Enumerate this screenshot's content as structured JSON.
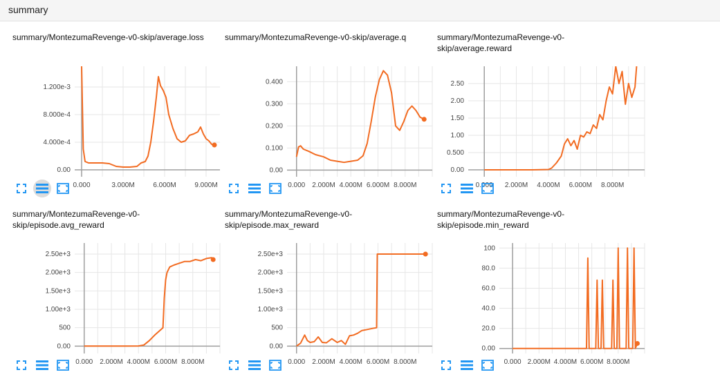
{
  "page": {
    "title": "summary"
  },
  "charts": [
    {
      "title_lines": [
        "summary/MontezumaRevenge-v0-skip/average.loss"
      ]
    },
    {
      "title_lines": [
        "summary/MontezumaRevenge-v0-skip/average.q"
      ]
    },
    {
      "title_lines": [
        "summary/MontezumaRevenge-v0-",
        "skip/average.reward"
      ]
    },
    {
      "title_lines": [
        "summary/MontezumaRevenge-v0-",
        "skip/episode.avg_reward"
      ]
    },
    {
      "title_lines": [
        "summary/MontezumaRevenge-v0-",
        "skip/episode.max_reward"
      ]
    },
    {
      "title_lines": [
        "summary/MontezumaRevenge-v0-",
        "skip/episode.min_reward"
      ]
    }
  ],
  "icons": [
    "expand-icon",
    "list-icon",
    "fit-domain-icon"
  ],
  "colors": {
    "line": "#f26b21",
    "grid": "#e6e6e6",
    "axis": "#9e9e9e",
    "icon": "#2196f3"
  },
  "chart_data": [
    {
      "type": "line",
      "title": "summary/MontezumaRevenge-v0-skip/average.loss",
      "x_ticks": [
        "0.000",
        "3.000M",
        "6.000M",
        "9.000M"
      ],
      "y_ticks": [
        "0.00",
        "4.000e-4",
        "8.000e-4",
        "1.200e-3"
      ],
      "xlim": [
        -500000,
        10000000
      ],
      "ylim": [
        -0.0001,
        0.0015
      ],
      "x_tick_values": [
        0,
        3000000,
        6000000,
        9000000
      ],
      "y_tick_values": [
        0,
        0.0004,
        0.0008,
        0.0012
      ],
      "series": [
        {
          "x": [
            0,
            120000,
            250000,
            500000,
            1000000,
            1500000,
            2000000,
            2500000,
            3000000,
            3500000,
            4000000,
            4300000,
            4600000,
            4800000,
            5000000,
            5200000,
            5400000,
            5550000,
            5700000,
            5900000,
            6100000,
            6300000,
            6600000,
            6900000,
            7200000,
            7500000,
            7800000,
            8100000,
            8400000,
            8600000,
            8800000,
            9000000,
            9200000,
            9400000,
            9600000
          ],
          "y": [
            0.0015,
            0.0003,
            0.00012,
            0.0001,
            0.0001,
            0.0001,
            9e-05,
            5e-05,
            4e-05,
            4e-05,
            5e-05,
            0.0001,
            0.00012,
            0.0002,
            0.0004,
            0.0007,
            0.00105,
            0.00135,
            0.00122,
            0.00115,
            0.00105,
            0.0008,
            0.0006,
            0.00045,
            0.0004,
            0.00042,
            0.0005,
            0.00052,
            0.00055,
            0.00062,
            0.00052,
            0.00045,
            0.00042,
            0.00037,
            0.00036
          ]
        }
      ],
      "end_marker": true
    },
    {
      "type": "line",
      "title": "summary/MontezumaRevenge-v0-skip/average.q",
      "x_ticks": [
        "0.000",
        "2.000M",
        "4.000M",
        "6.000M",
        "8.000M"
      ],
      "y_ticks": [
        "0.00",
        "0.100",
        "0.200",
        "0.300",
        "0.400"
      ],
      "xlim": [
        -700000,
        10000000
      ],
      "ylim": [
        -0.03,
        0.47
      ],
      "x_tick_values": [
        0,
        2000000,
        4000000,
        6000000,
        8000000
      ],
      "y_tick_values": [
        0,
        0.1,
        0.2,
        0.3,
        0.4
      ],
      "series": [
        {
          "x": [
            0,
            150000,
            300000,
            500000,
            900000,
            1400000,
            2000000,
            2500000,
            3000000,
            3500000,
            4000000,
            4500000,
            4900000,
            5200000,
            5500000,
            5800000,
            6100000,
            6400000,
            6700000,
            7000000,
            7300000,
            7600000,
            7900000,
            8200000,
            8500000,
            8800000,
            9100000,
            9400000
          ],
          "y": [
            0.06,
            0.105,
            0.11,
            0.095,
            0.085,
            0.07,
            0.06,
            0.045,
            0.04,
            0.035,
            0.04,
            0.045,
            0.065,
            0.12,
            0.22,
            0.33,
            0.41,
            0.45,
            0.43,
            0.35,
            0.2,
            0.18,
            0.22,
            0.27,
            0.29,
            0.27,
            0.24,
            0.23
          ]
        }
      ],
      "end_marker": true
    },
    {
      "type": "line",
      "title": "summary/MontezumaRevenge-v0-skip/average.reward",
      "x_ticks": [
        "0.000",
        "2.000M",
        "4.000M",
        "6.000M",
        "8.000M"
      ],
      "y_ticks": [
        "0.00",
        "0.500",
        "1.00",
        "1.50",
        "2.00",
        "2.50"
      ],
      "xlim": [
        -1000000,
        10000000
      ],
      "ylim": [
        -0.2,
        3.0
      ],
      "x_tick_values": [
        0,
        2000000,
        4000000,
        6000000,
        8000000
      ],
      "y_tick_values": [
        0,
        0.5,
        1.0,
        1.5,
        2.0,
        2.5
      ],
      "series": [
        {
          "x": [
            0,
            1000000,
            2000000,
            3000000,
            4000000,
            4200000,
            4500000,
            4800000,
            5000000,
            5200000,
            5400000,
            5600000,
            5800000,
            6000000,
            6200000,
            6400000,
            6600000,
            6800000,
            7000000,
            7200000,
            7400000,
            7600000,
            7800000,
            8000000,
            8200000,
            8400000,
            8600000,
            8800000,
            9000000,
            9200000,
            9400000,
            9500000
          ],
          "y": [
            0,
            0,
            0,
            0,
            0.01,
            0.05,
            0.2,
            0.4,
            0.75,
            0.9,
            0.7,
            0.85,
            0.6,
            1.0,
            0.95,
            1.1,
            1.05,
            1.3,
            1.2,
            1.6,
            1.45,
            2.0,
            2.4,
            2.2,
            3.0,
            2.5,
            2.85,
            1.9,
            2.5,
            2.1,
            2.4,
            3.0
          ]
        }
      ],
      "end_marker": false
    },
    {
      "type": "line",
      "title": "summary/MontezumaRevenge-v0-skip/episode.avg_reward",
      "x_ticks": [
        "0.000",
        "2.000M",
        "4.000M",
        "6.000M",
        "8.000M"
      ],
      "y_ticks": [
        "0.00",
        "500",
        "1.00e+3",
        "1.50e+3",
        "2.00e+3",
        "2.50e+3"
      ],
      "xlim": [
        -700000,
        10000000
      ],
      "ylim": [
        -200,
        2800
      ],
      "x_tick_values": [
        0,
        2000000,
        4000000,
        6000000,
        8000000
      ],
      "y_tick_values": [
        0,
        500,
        1000,
        1500,
        2000,
        2500
      ],
      "series": [
        {
          "x": [
            0,
            1000000,
            2000000,
            3000000,
            4000000,
            4400000,
            4800000,
            5200000,
            5500000,
            5800000,
            5900000,
            6000000,
            6100000,
            6300000,
            6600000,
            7000000,
            7400000,
            7800000,
            8200000,
            8600000,
            9000000,
            9400000,
            9500000
          ],
          "y": [
            0,
            0,
            0,
            0,
            5,
            30,
            150,
            300,
            400,
            500,
            1300,
            1800,
            2000,
            2150,
            2200,
            2250,
            2300,
            2300,
            2350,
            2320,
            2380,
            2400,
            2350
          ]
        }
      ],
      "end_marker": true
    },
    {
      "type": "line",
      "title": "summary/MontezumaRevenge-v0-skip/episode.max_reward",
      "x_ticks": [
        "0.000",
        "2.000M",
        "4.000M",
        "6.000M",
        "8.000M"
      ],
      "y_ticks": [
        "0.00",
        "500",
        "1.00e+3",
        "1.50e+3",
        "2.00e+3",
        "2.50e+3"
      ],
      "xlim": [
        -700000,
        10000000
      ],
      "ylim": [
        -200,
        2800
      ],
      "x_tick_values": [
        0,
        2000000,
        4000000,
        6000000,
        8000000
      ],
      "y_tick_values": [
        0,
        500,
        1000,
        1500,
        2000,
        2500
      ],
      "series": [
        {
          "x": [
            0,
            300000,
            600000,
            800000,
            1000000,
            1300000,
            1600000,
            1900000,
            2200000,
            2600000,
            3000000,
            3300000,
            3600000,
            3900000,
            4200000,
            4500000,
            4800000,
            5200000,
            5600000,
            5900000,
            5950000,
            6000000,
            7000000,
            8000000,
            9000000,
            9500000
          ],
          "y": [
            0,
            80,
            300,
            150,
            100,
            120,
            250,
            100,
            90,
            200,
            100,
            150,
            50,
            280,
            300,
            350,
            420,
            450,
            480,
            500,
            2500,
            2500,
            2500,
            2500,
            2500,
            2500
          ]
        }
      ],
      "end_marker": true
    },
    {
      "type": "line",
      "title": "summary/MontezumaRevenge-v0-skip/episode.min_reward",
      "x_ticks": [
        "0.000",
        "2.000M",
        "4.000M",
        "6.000M",
        "8.000M"
      ],
      "y_ticks": [
        "0.00",
        "20.0",
        "40.0",
        "60.0",
        "80.0",
        "100"
      ],
      "xlim": [
        -1000000,
        10000000
      ],
      "ylim": [
        -5,
        105
      ],
      "x_tick_values": [
        0,
        2000000,
        4000000,
        6000000,
        8000000
      ],
      "y_tick_values": [
        0,
        20,
        40,
        60,
        80,
        100
      ],
      "series": [
        {
          "x": [
            0,
            2000000,
            4000000,
            5600000,
            5700000,
            5800000,
            6300000,
            6400000,
            6500000,
            6700000,
            6800000,
            6900000,
            7500000,
            7600000,
            7700000,
            7900000,
            8000000,
            8100000,
            8600000,
            8700000,
            8800000,
            9100000,
            9200000,
            9300000,
            9450000
          ],
          "y": [
            0,
            0,
            0,
            0,
            90,
            0,
            0,
            68,
            0,
            0,
            68,
            0,
            0,
            68,
            0,
            0,
            100,
            0,
            0,
            100,
            0,
            0,
            100,
            0,
            5
          ]
        }
      ],
      "end_marker": true
    }
  ]
}
